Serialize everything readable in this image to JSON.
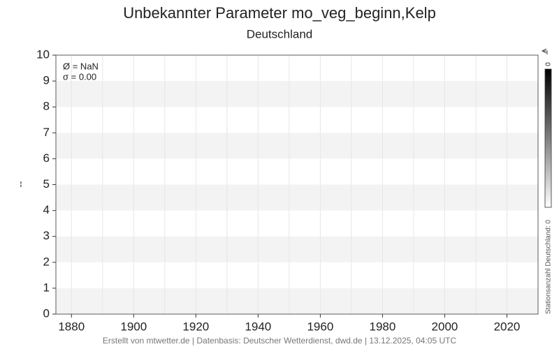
{
  "chart_data": {
    "type": "line",
    "title": "Unbekannter Parameter mo_veg_beginn,Kelp",
    "subtitle": "Deutschland",
    "y_label": "--",
    "annotations": [
      "Ø = NaN",
      "σ = 0.00"
    ],
    "colorbar_label": "Stationsanzahl Deutschland: 0",
    "colorbar_ticks": [
      0
    ],
    "footer": "Erstellt von mtwetter.de | Datenbasis: Deutscher Wetterdienst, dwd.de | 13.12.2025, 04:05 UTC",
    "series": [],
    "xlim": [
      1875,
      2030
    ],
    "xticks": [
      1880,
      1900,
      1920,
      1940,
      1960,
      1980,
      2000,
      2020
    ],
    "xminorticks": [
      1890,
      1910,
      1930,
      1950,
      1970,
      1990,
      2010
    ],
    "ylim": [
      0,
      10
    ],
    "yticks": [
      0,
      1,
      2,
      3,
      4,
      5,
      6,
      7,
      8,
      9,
      10
    ],
    "grid": true
  }
}
